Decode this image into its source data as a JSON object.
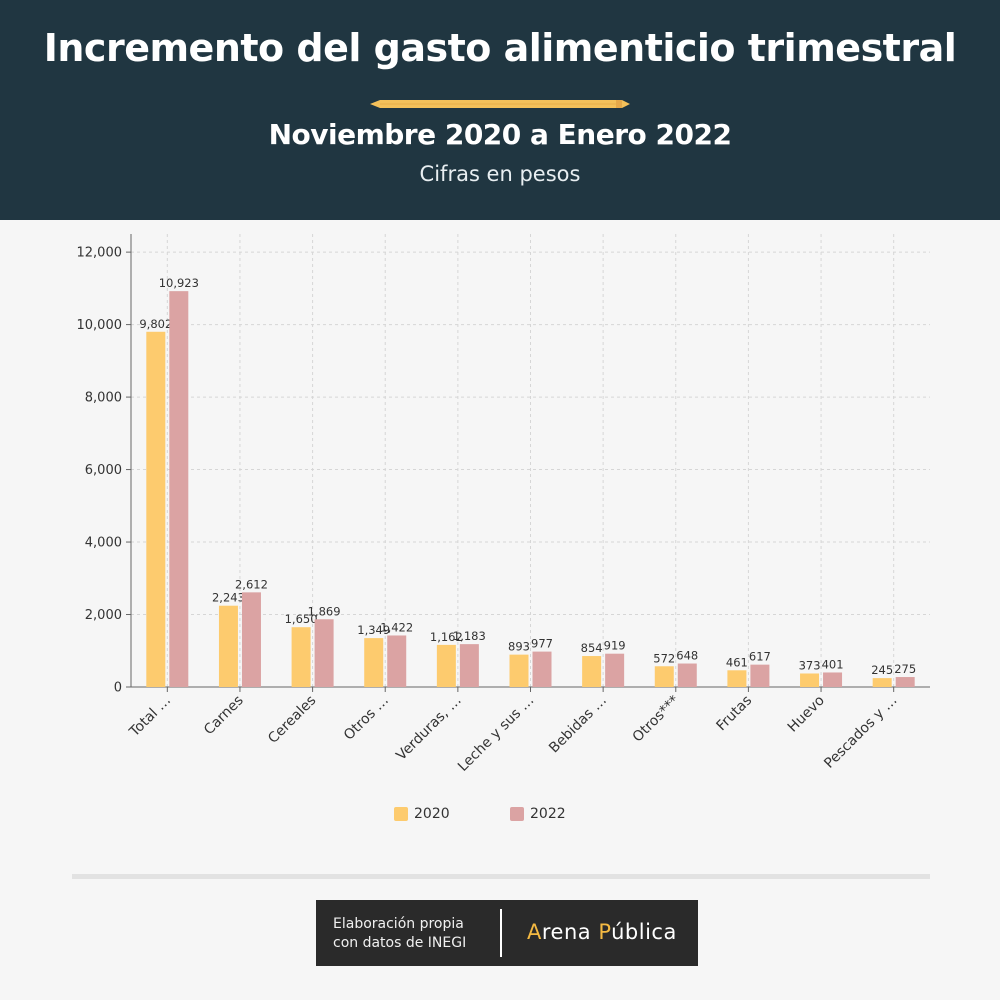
{
  "header": {
    "title": "Incremento del gasto alimenticio trimestral",
    "subtitle": "Noviembre 2020 a Enero 2022",
    "units": "Cifras en pesos"
  },
  "colors": {
    "header_bg": "#203641",
    "series_2020": "#fdcb6e",
    "series_2022": "#dba3a3",
    "pencil": "#f4c15a"
  },
  "chart_data": {
    "type": "bar",
    "categories": [
      "Total …",
      "Carnes",
      "Cereales",
      "Otros …",
      "Verduras, …",
      "Leche y sus …",
      "Bebidas …",
      "Otros***",
      "Frutas",
      "Huevo",
      "Pescados y …"
    ],
    "series": [
      {
        "name": "2020",
        "color": "#fdcb6e",
        "values": [
          9802,
          2243,
          1650,
          1349,
          1162,
          893,
          854,
          572,
          461,
          373,
          245
        ]
      },
      {
        "name": "2022",
        "color": "#dba3a3",
        "values": [
          10923,
          2612,
          1869,
          1422,
          1183,
          977,
          919,
          648,
          617,
          401,
          275
        ]
      }
    ],
    "y_ticks": [
      0,
      2000,
      4000,
      6000,
      8000,
      10000,
      12000
    ],
    "ylim": [
      0,
      12500
    ],
    "grid": true,
    "legend_position": "bottom"
  },
  "credit": {
    "line1": "Elaboración propia",
    "line2": "con datos de INEGI",
    "brand_first_initial": "A",
    "brand_first_rest": "rena ",
    "brand_second_initial": "P",
    "brand_second_rest": "ública"
  }
}
